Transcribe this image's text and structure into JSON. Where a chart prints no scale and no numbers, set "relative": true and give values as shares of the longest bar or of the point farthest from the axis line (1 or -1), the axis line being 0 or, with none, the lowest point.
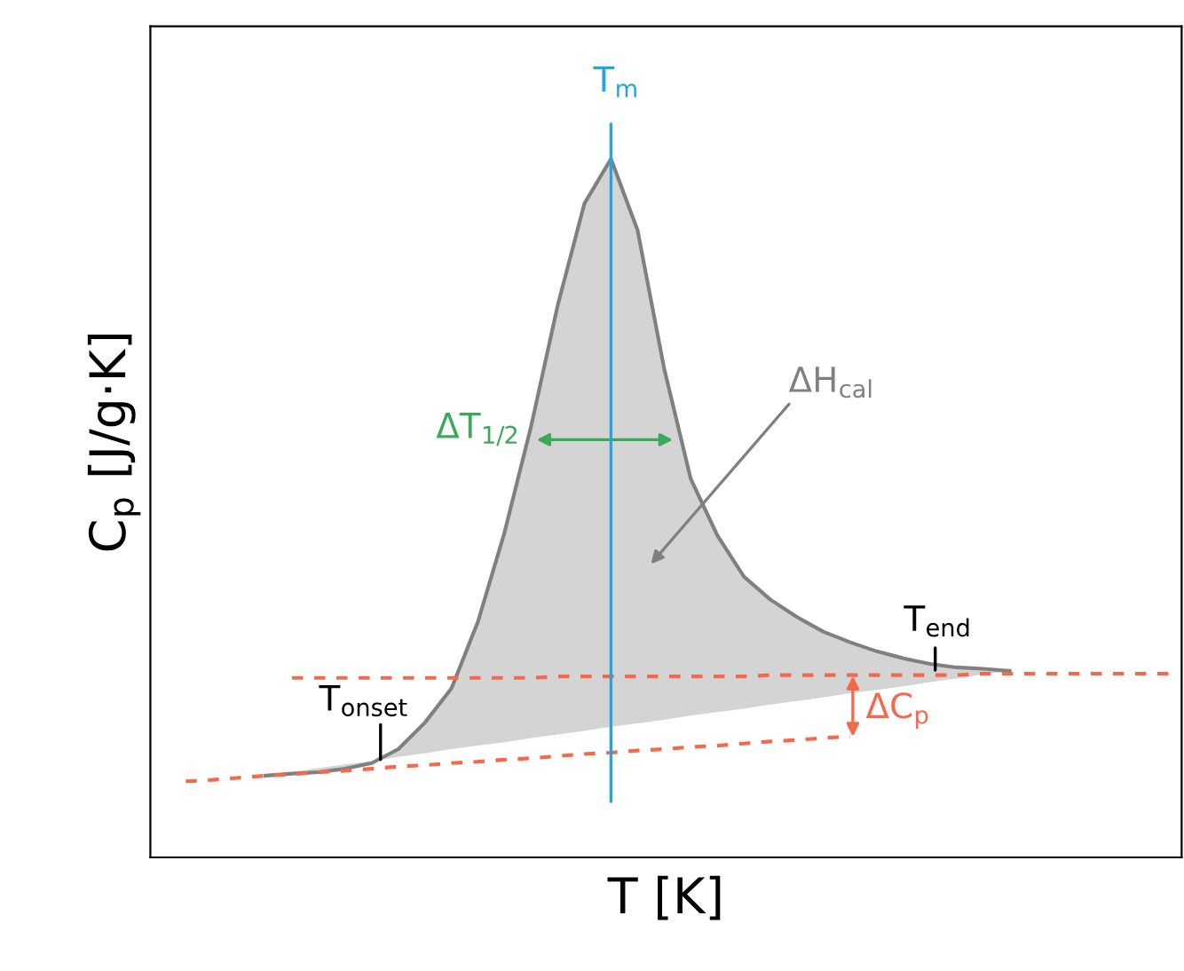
{
  "chart_data": {
    "type": "line",
    "relative": true,
    "xlabel": "T [K]",
    "ylabel": "C$_{p}$ [J/g·K]",
    "categories": [
      null,
      null,
      null,
      null,
      null,
      null,
      null,
      null,
      null,
      null,
      null,
      null,
      null,
      null,
      null,
      null,
      null,
      null,
      null,
      null,
      null,
      null,
      null,
      null,
      null,
      null,
      null,
      null,
      null,
      null,
      null,
      null,
      null,
      null,
      null,
      null,
      null,
      null
    ],
    "series": [
      {
        "color": "#808080",
        "values": [
          null,
          null,
          null,
          0.117,
          0.12,
          0.122,
          0.127,
          0.135,
          0.155,
          0.193,
          0.242,
          0.338,
          0.466,
          0.618,
          0.791,
          0.936,
          1.0,
          0.898,
          0.7,
          0.542,
          0.461,
          0.402,
          0.369,
          0.344,
          0.323,
          0.308,
          0.295,
          0.285,
          0.277,
          0.272,
          0.27,
          0.267,
          null,
          null,
          null,
          null,
          null,
          null
        ],
        "lower": [
          null,
          null,
          null,
          0.117,
          0.122,
          0.128,
          0.133,
          0.138,
          0.144,
          0.149,
          0.155,
          0.16,
          0.165,
          0.171,
          0.176,
          0.181,
          0.187,
          0.192,
          0.197,
          0.203,
          0.208,
          0.213,
          0.219,
          0.224,
          0.229,
          0.235,
          0.24,
          0.245,
          0.251,
          0.256,
          0.262,
          0.267,
          null,
          null,
          null,
          null,
          null,
          null
        ],
        "upper": [
          null,
          null,
          null,
          0.117,
          0.12,
          0.122,
          0.127,
          0.135,
          0.155,
          0.193,
          0.242,
          0.338,
          0.466,
          0.618,
          0.791,
          0.936,
          1.0,
          0.898,
          0.7,
          0.542,
          0.461,
          0.402,
          0.369,
          0.344,
          0.323,
          0.308,
          0.295,
          0.285,
          0.277,
          0.272,
          0.27,
          0.267,
          null,
          null,
          null,
          null,
          null,
          null
        ]
      },
      {
        "color": "#f4694c",
        "line_style": "dashed",
        "values": [
          0.109,
          0.111,
          0.114,
          0.117,
          0.119,
          0.122,
          0.124,
          0.127,
          0.13,
          0.132,
          0.135,
          0.137,
          0.14,
          0.142,
          0.145,
          0.148,
          0.15,
          0.153,
          0.155,
          0.158,
          0.16,
          0.163,
          0.166,
          0.168,
          0.171,
          0.173,
          null,
          null,
          null,
          null,
          null,
          null,
          null,
          null,
          null,
          null,
          null,
          null
        ]
      },
      {
        "color": "#f4694c",
        "line_style": "dashed",
        "values": [
          null,
          null,
          null,
          null,
          0.257,
          0.257,
          0.257,
          0.257,
          0.257,
          0.257,
          0.257,
          0.257,
          0.257,
          0.257,
          0.259,
          0.259,
          0.259,
          0.259,
          0.259,
          0.259,
          0.259,
          0.259,
          0.261,
          0.261,
          0.261,
          0.261,
          0.261,
          0.261,
          0.261,
          0.261,
          0.263,
          0.263,
          0.263,
          0.263,
          0.263,
          0.263,
          0.263,
          0.263
        ]
      }
    ],
    "annotations": [
      "ΔT$_{1/2}$",
      "ΔH$_{cal}$",
      "T$_{onset}$",
      "T$_{end}$",
      "ΔC$_{p}$",
      "T$_{m}$"
    ]
  }
}
